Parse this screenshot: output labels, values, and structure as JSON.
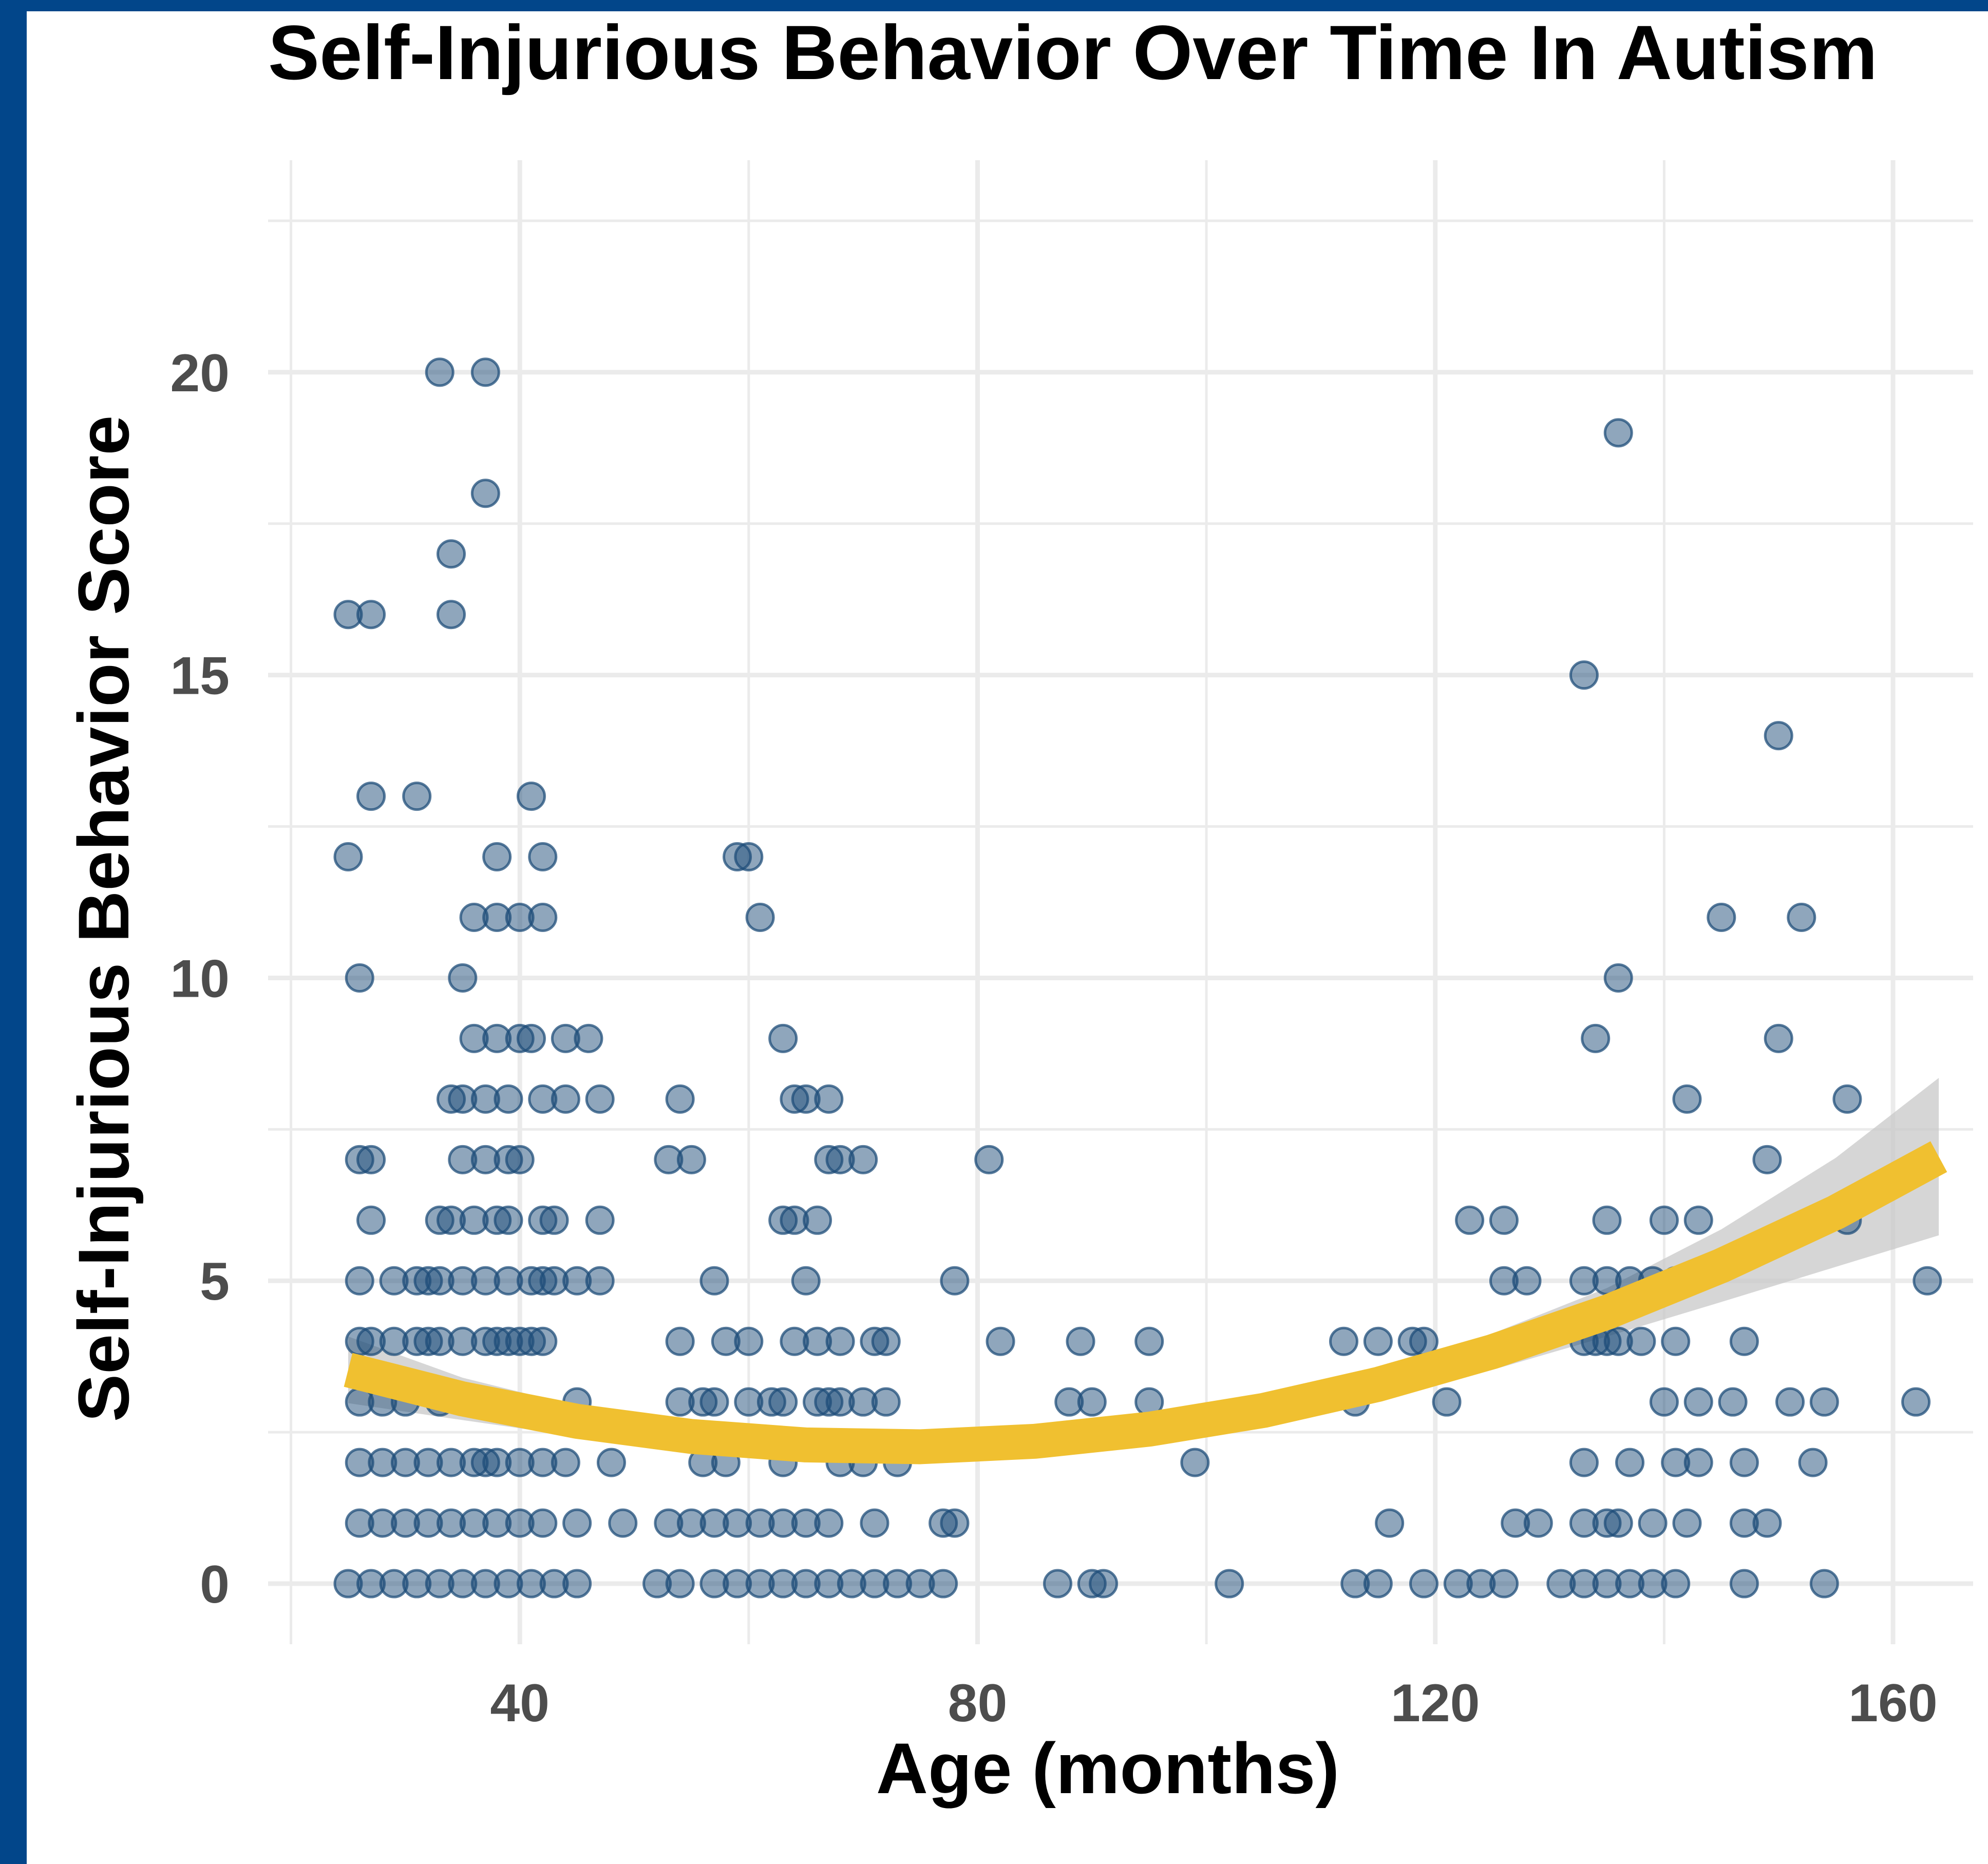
{
  "chart_data": {
    "type": "scatter",
    "title": "Self-Injurious Behavior Over Time In Autism",
    "xlabel": "Age (months)",
    "ylabel": "Self-Injurious Behavior Score",
    "xlim": [
      18,
      167
    ],
    "ylim": [
      -1,
      23.5
    ],
    "x_ticks": [
      40,
      80,
      120,
      160
    ],
    "y_ticks": [
      0,
      5,
      10,
      15,
      20
    ],
    "grid": true,
    "point_color": "#1f4e79",
    "trend_color": "#f0c030",
    "band_color": "#c8c8c8",
    "series": [
      {
        "type": "scatter",
        "points": [
          [
            33,
            20
          ],
          [
            37,
            20
          ],
          [
            136,
            19
          ],
          [
            37,
            18
          ],
          [
            34,
            17
          ],
          [
            25,
            16
          ],
          [
            27,
            16
          ],
          [
            34,
            16
          ],
          [
            133,
            15
          ],
          [
            150,
            14
          ],
          [
            27,
            13
          ],
          [
            31,
            13
          ],
          [
            41,
            13
          ],
          [
            25,
            12
          ],
          [
            38,
            12
          ],
          [
            42,
            12
          ],
          [
            59,
            12
          ],
          [
            60,
            12
          ],
          [
            36,
            11
          ],
          [
            38,
            11
          ],
          [
            40,
            11
          ],
          [
            42,
            11
          ],
          [
            61,
            11
          ],
          [
            145,
            11
          ],
          [
            152,
            11
          ],
          [
            26,
            10
          ],
          [
            35,
            10
          ],
          [
            136,
            10
          ],
          [
            36,
            9
          ],
          [
            38,
            9
          ],
          [
            40,
            9
          ],
          [
            41,
            9
          ],
          [
            44,
            9
          ],
          [
            46,
            9
          ],
          [
            63,
            9
          ],
          [
            134,
            9
          ],
          [
            150,
            9
          ],
          [
            34,
            8
          ],
          [
            35,
            8
          ],
          [
            37,
            8
          ],
          [
            39,
            8
          ],
          [
            42,
            8
          ],
          [
            44,
            8
          ],
          [
            47,
            8
          ],
          [
            54,
            8
          ],
          [
            64,
            8
          ],
          [
            65,
            8
          ],
          [
            67,
            8
          ],
          [
            142,
            8
          ],
          [
            156,
            8
          ],
          [
            26,
            7
          ],
          [
            27,
            7
          ],
          [
            35,
            7
          ],
          [
            37,
            7
          ],
          [
            39,
            7
          ],
          [
            40,
            7
          ],
          [
            53,
            7
          ],
          [
            55,
            7
          ],
          [
            67,
            7
          ],
          [
            68,
            7
          ],
          [
            70,
            7
          ],
          [
            81,
            7
          ],
          [
            149,
            7
          ],
          [
            27,
            6
          ],
          [
            33,
            6
          ],
          [
            34,
            6
          ],
          [
            36,
            6
          ],
          [
            38,
            6
          ],
          [
            39,
            6
          ],
          [
            42,
            6
          ],
          [
            43,
            6
          ],
          [
            47,
            6
          ],
          [
            63,
            6
          ],
          [
            64,
            6
          ],
          [
            66,
            6
          ],
          [
            123,
            6
          ],
          [
            126,
            6
          ],
          [
            135,
            6
          ],
          [
            140,
            6
          ],
          [
            143,
            6
          ],
          [
            156,
            6
          ],
          [
            26,
            5
          ],
          [
            29,
            5
          ],
          [
            31,
            5
          ],
          [
            32,
            5
          ],
          [
            33,
            5
          ],
          [
            35,
            5
          ],
          [
            37,
            5
          ],
          [
            39,
            5
          ],
          [
            41,
            5
          ],
          [
            42,
            5
          ],
          [
            43,
            5
          ],
          [
            45,
            5
          ],
          [
            47,
            5
          ],
          [
            57,
            5
          ],
          [
            65,
            5
          ],
          [
            78,
            5
          ],
          [
            126,
            5
          ],
          [
            128,
            5
          ],
          [
            133,
            5
          ],
          [
            135,
            5
          ],
          [
            137,
            5
          ],
          [
            139,
            5
          ],
          [
            141,
            5
          ],
          [
            163,
            5
          ],
          [
            26,
            4
          ],
          [
            27,
            4
          ],
          [
            29,
            4
          ],
          [
            31,
            4
          ],
          [
            32,
            4
          ],
          [
            33,
            4
          ],
          [
            35,
            4
          ],
          [
            37,
            4
          ],
          [
            38,
            4
          ],
          [
            39,
            4
          ],
          [
            40,
            4
          ],
          [
            41,
            4
          ],
          [
            42,
            4
          ],
          [
            54,
            4
          ],
          [
            58,
            4
          ],
          [
            60,
            4
          ],
          [
            64,
            4
          ],
          [
            66,
            4
          ],
          [
            68,
            4
          ],
          [
            71,
            4
          ],
          [
            72,
            4
          ],
          [
            82,
            4
          ],
          [
            89,
            4
          ],
          [
            95,
            4
          ],
          [
            112,
            4
          ],
          [
            115,
            4
          ],
          [
            118,
            4
          ],
          [
            119,
            4
          ],
          [
            133,
            4
          ],
          [
            134,
            4
          ],
          [
            135,
            4
          ],
          [
            136,
            4
          ],
          [
            138,
            4
          ],
          [
            141,
            4
          ],
          [
            147,
            4
          ],
          [
            26,
            3
          ],
          [
            28,
            3
          ],
          [
            30,
            3
          ],
          [
            33,
            3
          ],
          [
            37,
            3
          ],
          [
            45,
            3
          ],
          [
            54,
            3
          ],
          [
            56,
            3
          ],
          [
            57,
            3
          ],
          [
            60,
            3
          ],
          [
            62,
            3
          ],
          [
            63,
            3
          ],
          [
            66,
            3
          ],
          [
            67,
            3
          ],
          [
            68,
            3
          ],
          [
            70,
            3
          ],
          [
            72,
            3
          ],
          [
            88,
            3
          ],
          [
            90,
            3
          ],
          [
            95,
            3
          ],
          [
            113,
            3
          ],
          [
            121,
            3
          ],
          [
            140,
            3
          ],
          [
            143,
            3
          ],
          [
            146,
            3
          ],
          [
            151,
            3
          ],
          [
            154,
            3
          ],
          [
            162,
            3
          ],
          [
            26,
            2
          ],
          [
            28,
            2
          ],
          [
            30,
            2
          ],
          [
            32,
            2
          ],
          [
            34,
            2
          ],
          [
            36,
            2
          ],
          [
            37,
            2
          ],
          [
            38,
            2
          ],
          [
            40,
            2
          ],
          [
            42,
            2
          ],
          [
            44,
            2
          ],
          [
            48,
            2
          ],
          [
            56,
            2
          ],
          [
            58,
            2
          ],
          [
            63,
            2
          ],
          [
            68,
            2
          ],
          [
            70,
            2
          ],
          [
            73,
            2
          ],
          [
            99,
            2
          ],
          [
            133,
            2
          ],
          [
            137,
            2
          ],
          [
            141,
            2
          ],
          [
            143,
            2
          ],
          [
            147,
            2
          ],
          [
            153,
            2
          ],
          [
            26,
            1
          ],
          [
            28,
            1
          ],
          [
            30,
            1
          ],
          [
            32,
            1
          ],
          [
            34,
            1
          ],
          [
            36,
            1
          ],
          [
            38,
            1
          ],
          [
            40,
            1
          ],
          [
            42,
            1
          ],
          [
            45,
            1
          ],
          [
            49,
            1
          ],
          [
            53,
            1
          ],
          [
            55,
            1
          ],
          [
            57,
            1
          ],
          [
            59,
            1
          ],
          [
            61,
            1
          ],
          [
            63,
            1
          ],
          [
            65,
            1
          ],
          [
            67,
            1
          ],
          [
            71,
            1
          ],
          [
            78,
            1
          ],
          [
            77,
            1
          ],
          [
            116,
            1
          ],
          [
            127,
            1
          ],
          [
            129,
            1
          ],
          [
            133,
            1
          ],
          [
            135,
            1
          ],
          [
            136,
            1
          ],
          [
            139,
            1
          ],
          [
            142,
            1
          ],
          [
            147,
            1
          ],
          [
            149,
            1
          ],
          [
            25,
            0
          ],
          [
            27,
            0
          ],
          [
            29,
            0
          ],
          [
            31,
            0
          ],
          [
            33,
            0
          ],
          [
            35,
            0
          ],
          [
            37,
            0
          ],
          [
            39,
            0
          ],
          [
            41,
            0
          ],
          [
            43,
            0
          ],
          [
            45,
            0
          ],
          [
            52,
            0
          ],
          [
            54,
            0
          ],
          [
            57,
            0
          ],
          [
            59,
            0
          ],
          [
            61,
            0
          ],
          [
            63,
            0
          ],
          [
            65,
            0
          ],
          [
            67,
            0
          ],
          [
            69,
            0
          ],
          [
            71,
            0
          ],
          [
            73,
            0
          ],
          [
            75,
            0
          ],
          [
            77,
            0
          ],
          [
            87,
            0
          ],
          [
            90,
            0
          ],
          [
            91,
            0
          ],
          [
            102,
            0
          ],
          [
            113,
            0
          ],
          [
            115,
            0
          ],
          [
            119,
            0
          ],
          [
            122,
            0
          ],
          [
            124,
            0
          ],
          [
            126,
            0
          ],
          [
            131,
            0
          ],
          [
            133,
            0
          ],
          [
            135,
            0
          ],
          [
            137,
            0
          ],
          [
            139,
            0
          ],
          [
            141,
            0
          ],
          [
            147,
            0
          ],
          [
            154,
            0
          ]
        ]
      },
      {
        "type": "line",
        "fit": "quadratic",
        "x": [
          25,
          35,
          45,
          55,
          65,
          75,
          85,
          95,
          105,
          115,
          125,
          135,
          145,
          155,
          164
        ],
        "y": [
          3.53,
          3.05,
          2.68,
          2.43,
          2.29,
          2.26,
          2.35,
          2.55,
          2.86,
          3.29,
          3.83,
          4.48,
          5.25,
          6.13,
          7.05
        ],
        "band_halfwidth": [
          0.55,
          0.35,
          0.25,
          0.2,
          0.18,
          0.17,
          0.18,
          0.2,
          0.22,
          0.25,
          0.3,
          0.4,
          0.6,
          0.9,
          1.3
        ]
      }
    ]
  }
}
